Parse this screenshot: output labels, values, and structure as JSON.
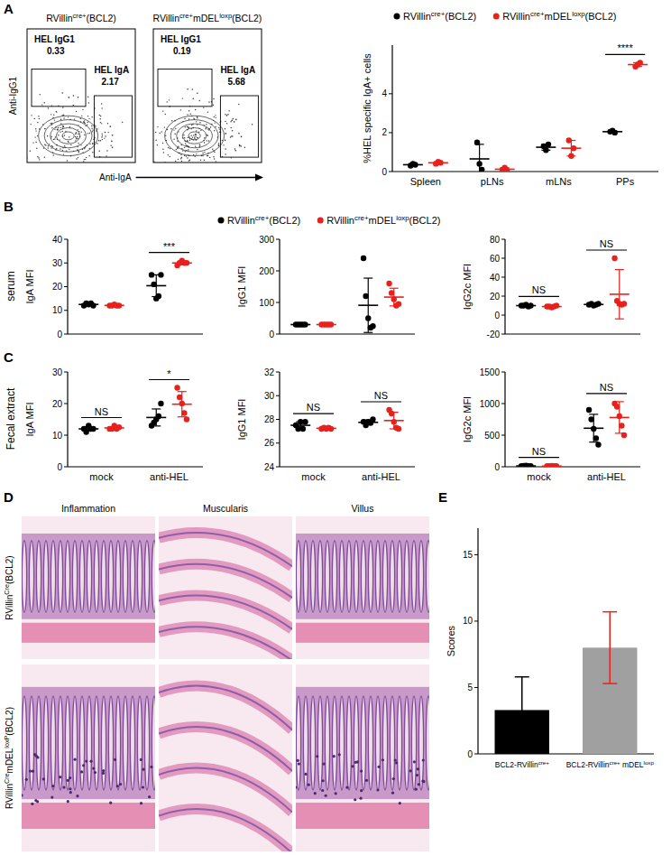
{
  "figure": {
    "panel_labels": [
      "A",
      "B",
      "C",
      "D",
      "E"
    ],
    "flow_plots": [
      {
        "title": [
          "RVillin",
          "cre+",
          "(BCL2)"
        ],
        "gates": [
          {
            "label": "HEL IgG1",
            "value": 0.33
          },
          {
            "label": "HEL IgA",
            "value": 2.17
          }
        ]
      },
      {
        "title": [
          "RVillin",
          "cre+",
          "mDEL",
          "loxp",
          "(BCL2)"
        ],
        "gates": [
          {
            "label": "HEL IgG1",
            "value": 0.19
          },
          {
            "label": "HEL IgA",
            "value": 5.68
          }
        ]
      }
    ],
    "flow_axis_labels": {
      "y": "Anti-IgG1",
      "x": "Anti-IgA"
    },
    "row_labels": {
      "B": "serum",
      "C": "Fecal extract"
    },
    "histology": {
      "columns": [
        "Inflammation",
        "Muscularis",
        "Villus"
      ],
      "rows": [
        [
          "RVillin",
          "Cre",
          "(BCL2)"
        ],
        [
          "RVillin",
          "Cre",
          "mDEL",
          "loxP",
          "(BCL2)"
        ]
      ]
    }
  },
  "chart_data": [
    {
      "type": "strip",
      "y_label": "%HEL specific IgA+ cells",
      "categories": [
        "Spleen",
        "pLNs",
        "mLNs",
        "PPs"
      ],
      "series": [
        {
          "name": [
            "RVillin",
            "cre+",
            "(BCL2)"
          ],
          "color": "#000000",
          "values": [
            [
              0.3,
              0.4,
              0.35
            ],
            [
              1.5,
              0.4,
              0.1
            ],
            [
              1.3,
              1.1,
              1.4
            ],
            [
              2.05,
              2.1,
              2.0
            ]
          ],
          "mean": [
            0.35,
            0.65,
            1.25,
            2.05
          ],
          "sd": [
            0.05,
            0.75,
            0.15,
            0.05
          ]
        },
        {
          "name": [
            "RVillin",
            "cre+",
            "mDEL",
            "loxp",
            "(BCL2)"
          ],
          "color": "#e8211d",
          "values": [
            [
              0.4,
              0.5,
              0.45
            ],
            [
              0.1,
              0.2,
              0.05
            ],
            [
              1.6,
              0.8,
              1.2
            ],
            [
              5.4,
              5.5,
              5.6
            ]
          ],
          "mean": [
            0.45,
            0.12,
            1.2,
            5.5
          ],
          "sd": [
            0.05,
            0.08,
            0.4,
            0.1
          ]
        }
      ],
      "ylim": [
        0,
        6.5
      ],
      "yticks": [
        0,
        2,
        4
      ],
      "significance": [
        null,
        null,
        null,
        "****"
      ],
      "legend": "top"
    },
    {
      "type": "strip",
      "y_label": "IgA MFI",
      "categories": [
        null,
        null
      ],
      "series": [
        {
          "name": [
            "RVillin",
            "cre+",
            "(BCL2)"
          ],
          "color": "#000000",
          "values": [
            [
              12,
              13,
              12.5,
              13,
              12
            ],
            [
              25,
              21,
              15,
              16,
              25
            ]
          ],
          "mean": [
            12.5,
            20.4
          ],
          "sd": [
            0.5,
            4.6
          ]
        },
        {
          "name": [
            "RVillin",
            "cre+",
            "mDEL",
            "loxp",
            "(BCL2)"
          ],
          "color": "#e8211d",
          "values": [
            [
              12,
              12,
              12.5,
              12,
              12
            ],
            [
              29,
              30,
              31,
              30,
              30
            ]
          ],
          "mean": [
            12.1,
            30
          ],
          "sd": [
            0.2,
            0.7
          ]
        }
      ],
      "ylim": [
        0,
        40
      ],
      "yticks": [
        0,
        10,
        20,
        30,
        40
      ],
      "significance": [
        null,
        "***"
      ],
      "legend": "top"
    },
    {
      "type": "strip",
      "y_label": "IgG1 MFI",
      "categories": [
        null,
        null
      ],
      "series": [
        {
          "color": "#000000",
          "values": [
            [
              30,
              30,
              30,
              30,
              30
            ],
            [
              240,
              120,
              50,
              20,
              25
            ]
          ],
          "mean": [
            30,
            91
          ],
          "sd": [
            0.5,
            86
          ]
        },
        {
          "color": "#e8211d",
          "values": [
            [
              30,
              30,
              30,
              30,
              30
            ],
            [
              160,
              130,
              110,
              90,
              95
            ]
          ],
          "mean": [
            30,
            117
          ],
          "sd": [
            0.5,
            28
          ]
        }
      ],
      "ylim": [
        0,
        300
      ],
      "yticks": [
        0,
        100,
        200,
        300
      ]
    },
    {
      "type": "strip",
      "y_label": "IgG2c MFI",
      "categories": [
        null,
        null
      ],
      "series": [
        {
          "color": "#000000",
          "values": [
            [
              10,
              10,
              11,
              9,
              10
            ],
            [
              11,
              12,
              10,
              11,
              12
            ]
          ],
          "mean": [
            10,
            11.2
          ],
          "sd": [
            0.7,
            0.8
          ]
        },
        {
          "color": "#e8211d",
          "values": [
            [
              9,
              9,
              8,
              9,
              10
            ],
            [
              60,
              15,
              12,
              11,
              12
            ]
          ],
          "mean": [
            9,
            22
          ],
          "sd": [
            0.7,
            26
          ]
        }
      ],
      "ylim": [
        -20,
        80
      ],
      "yticks": [
        -20,
        0,
        20,
        40,
        60,
        80
      ],
      "significance": [
        "NS",
        "NS"
      ]
    },
    {
      "type": "strip",
      "y_label": "IgA MFI",
      "categories": [
        "mock",
        "anti-HEL"
      ],
      "series": [
        {
          "color": "#000000",
          "values": [
            [
              12,
              11,
              13,
              12,
              12
            ],
            [
              13,
              14,
              15,
              16,
              20
            ]
          ],
          "mean": [
            12,
            15.6
          ],
          "sd": [
            0.7,
            2.7
          ]
        },
        {
          "color": "#e8211d",
          "values": [
            [
              12,
              12,
              13,
              12,
              12.5
            ],
            [
              25,
              22,
              20,
              17,
              15
            ]
          ],
          "mean": [
            12.3,
            19.8
          ],
          "sd": [
            0.4,
            4
          ]
        }
      ],
      "ylim": [
        0,
        30
      ],
      "yticks": [
        0,
        10,
        20,
        30
      ],
      "significance": [
        "NS",
        "*"
      ]
    },
    {
      "type": "strip",
      "y_label": "IgG1 MFI",
      "categories": [
        "mock",
        "anti-HEL"
      ],
      "series": [
        {
          "color": "#000000",
          "values": [
            [
              27.5,
              27.2,
              27.8,
              27.2,
              27.8
            ],
            [
              27.8,
              27.5,
              27.8,
              27.7,
              28
            ]
          ],
          "mean": [
            27.5,
            27.75
          ],
          "sd": [
            0.3,
            0.2
          ]
        },
        {
          "color": "#e8211d",
          "values": [
            [
              27.2,
              27.3,
              27.2,
              27.3,
              27.2
            ],
            [
              28.8,
              28.5,
              27.8,
              27.3,
              27.2
            ]
          ],
          "mean": [
            27.25,
            27.9
          ],
          "sd": [
            0.05,
            0.7
          ]
        }
      ],
      "ylim": [
        24,
        32
      ],
      "yticks": [
        24,
        26,
        28,
        30,
        32
      ],
      "significance": [
        "NS",
        "NS"
      ]
    },
    {
      "type": "strip",
      "y_label": "IgG2c MFI",
      "categories": [
        "mock",
        "anti-HEL"
      ],
      "series": [
        {
          "color": "#000000",
          "values": [
            [
              10,
              15,
              20,
              10,
              10
            ],
            [
              900,
              750,
              600,
              450,
              350
            ]
          ],
          "mean": [
            13,
            610
          ],
          "sd": [
            4,
            220
          ]
        },
        {
          "color": "#e8211d",
          "values": [
            [
              10,
              10,
              15,
              12,
              10
            ],
            [
              1000,
              950,
              800,
              650,
              500
            ]
          ],
          "mean": [
            11,
            780
          ],
          "sd": [
            2,
            250
          ]
        }
      ],
      "ylim": [
        0,
        1500
      ],
      "yticks": [
        0,
        500,
        1000,
        1500
      ],
      "significance": [
        "NS",
        "NS"
      ]
    },
    {
      "type": "bar",
      "y_label": "Scores",
      "categories": [
        [
          "BCL2-RVillin",
          "cre+"
        ],
        [
          "BCL2-RVillin",
          "cre+",
          " mDEL",
          "loxp"
        ]
      ],
      "values": [
        3.3,
        8
      ],
      "error": [
        2.5,
        2.7
      ],
      "colors": [
        "#000000",
        "#a0a0a0"
      ],
      "ylim": [
        0,
        17
      ],
      "yticks": [
        0,
        5,
        10,
        15
      ]
    }
  ]
}
